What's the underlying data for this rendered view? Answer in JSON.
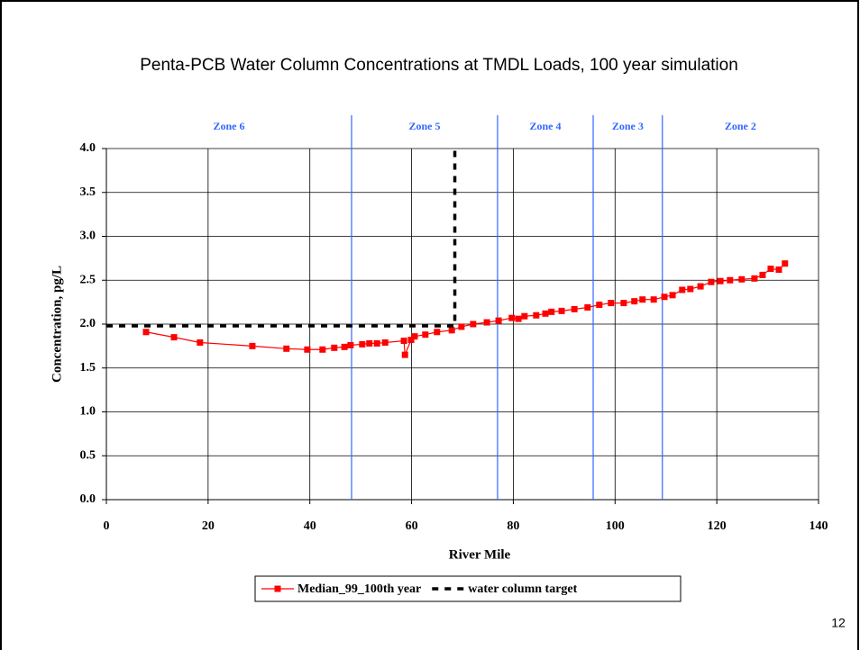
{
  "chart_data": {
    "type": "scatter-line",
    "title": "Penta-PCB Water Column Concentrations at TMDL Loads, 100 year simulation",
    "x_label": "River Mile",
    "y_label": "Concentration, pg/L",
    "xlim": [
      0,
      140
    ],
    "xticks": [
      0,
      20,
      40,
      60,
      80,
      100,
      120,
      140
    ],
    "ylim": [
      0,
      4
    ],
    "yticks": [
      {
        "value": 0,
        "label": "0.0"
      },
      {
        "value": 0.5,
        "label": "0.5"
      },
      {
        "value": 1,
        "label": "1.0"
      },
      {
        "value": 1.5,
        "label": "1.5"
      },
      {
        "value": 2,
        "label": "2.0"
      },
      {
        "value": 2.5,
        "label": "2.5"
      },
      {
        "value": 3,
        "label": "3.0"
      },
      {
        "value": 3.5,
        "label": "3.5"
      },
      {
        "value": 4,
        "label": "4.0"
      }
    ],
    "grid": true,
    "legend": "bottom",
    "zone_boundaries": [
      48.2,
      76.9,
      95.7,
      109.3
    ],
    "zone_color": "#3366ff",
    "zone_labels": [
      "Zone 6",
      "Zone 5",
      "Zone 4",
      "Zone 3",
      "Zone 2"
    ],
    "series": [
      {
        "name": "Median_99_100th year",
        "color": "#ff0000",
        "marker": "square",
        "dashed": false,
        "x": [
          7.8,
          13.3,
          18.4,
          28.7,
          35.4,
          39.5,
          42.5,
          44.8,
          46.8,
          48.0,
          50.3,
          51.7,
          53.2,
          54.8,
          58.5,
          58.7,
          59.9,
          60.6,
          62.7,
          65.0,
          67.9,
          69.8,
          72.1,
          74.8,
          77.1,
          79.7,
          81.0,
          82.2,
          84.5,
          86.3,
          87.5,
          89.5,
          92.0,
          94.6,
          96.9,
          99.2,
          101.7,
          103.8,
          105.4,
          107.6,
          109.7,
          111.3,
          113.2,
          114.8,
          116.8,
          118.9,
          120.7,
          122.6,
          124.9,
          127.4,
          129.0,
          130.6,
          132.2,
          133.4
        ],
        "values": [
          1.91,
          1.85,
          1.79,
          1.75,
          1.72,
          1.71,
          1.71,
          1.73,
          1.74,
          1.76,
          1.77,
          1.78,
          1.78,
          1.79,
          1.81,
          1.65,
          1.82,
          1.86,
          1.88,
          1.91,
          1.93,
          1.97,
          2.0,
          2.02,
          2.04,
          2.07,
          2.06,
          2.09,
          2.1,
          2.12,
          2.14,
          2.15,
          2.17,
          2.19,
          2.22,
          2.24,
          2.24,
          2.26,
          2.28,
          2.28,
          2.31,
          2.33,
          2.39,
          2.4,
          2.43,
          2.48,
          2.49,
          2.5,
          2.51,
          2.52,
          2.56,
          2.63,
          2.62,
          2.69
        ]
      },
      {
        "name": "water column target",
        "color": "#000000",
        "marker": "none",
        "dashed": true,
        "x": [
          0,
          68.5,
          68.5
        ],
        "values": [
          1.98,
          1.98,
          4.0
        ]
      }
    ]
  },
  "page_number": "12"
}
